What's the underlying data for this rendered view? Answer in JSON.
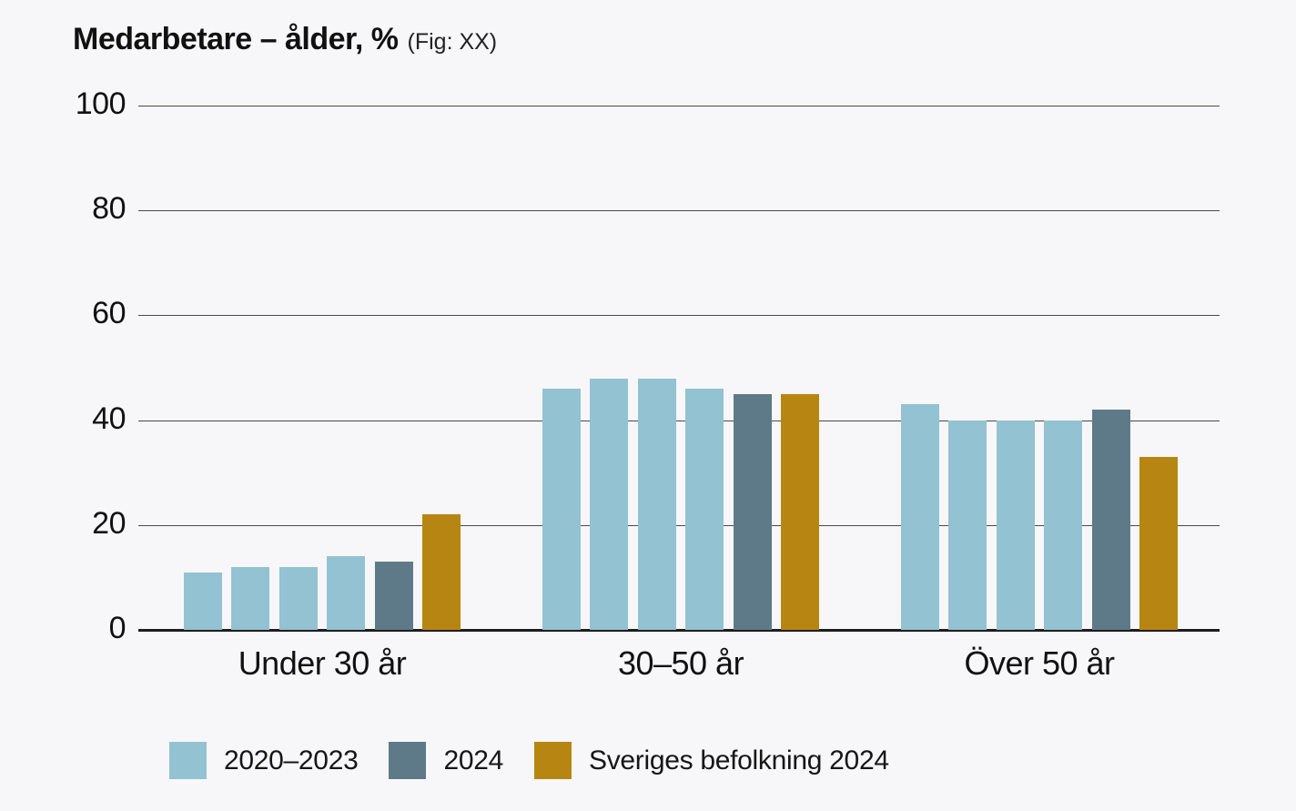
{
  "page": {
    "title": "Medarbetare – ålder, %",
    "fig_note": "(Fig: XX)"
  },
  "chart_data": {
    "type": "bar",
    "title": "Medarbetare – ålder, %",
    "unit": "%",
    "categories": [
      "Under 30 år",
      "30–50 år",
      "Över 50 år"
    ],
    "series": [
      {
        "name": "2020–2023",
        "color": "#93c2d2",
        "values": [
          [
            11,
            12,
            12,
            14
          ],
          [
            46,
            48,
            48,
            46
          ],
          [
            43,
            40,
            40,
            40
          ]
        ]
      },
      {
        "name": "2024",
        "color": "#5e7a88",
        "values": [
          [
            13
          ],
          [
            45
          ],
          [
            42
          ]
        ]
      },
      {
        "name": "Sveriges befolkning 2024",
        "color": "#b78511",
        "values": [
          [
            22
          ],
          [
            45
          ],
          [
            33
          ]
        ]
      }
    ],
    "ylim": [
      0,
      100
    ],
    "yticks": [
      0,
      20,
      40,
      60,
      80,
      100
    ],
    "grid": true,
    "legend_position": "bottom-left"
  },
  "colors": {
    "background": "#f7f7f9",
    "text": "#161616",
    "gridline": "#4a4a4a",
    "baseline": "#1d1d1d"
  }
}
